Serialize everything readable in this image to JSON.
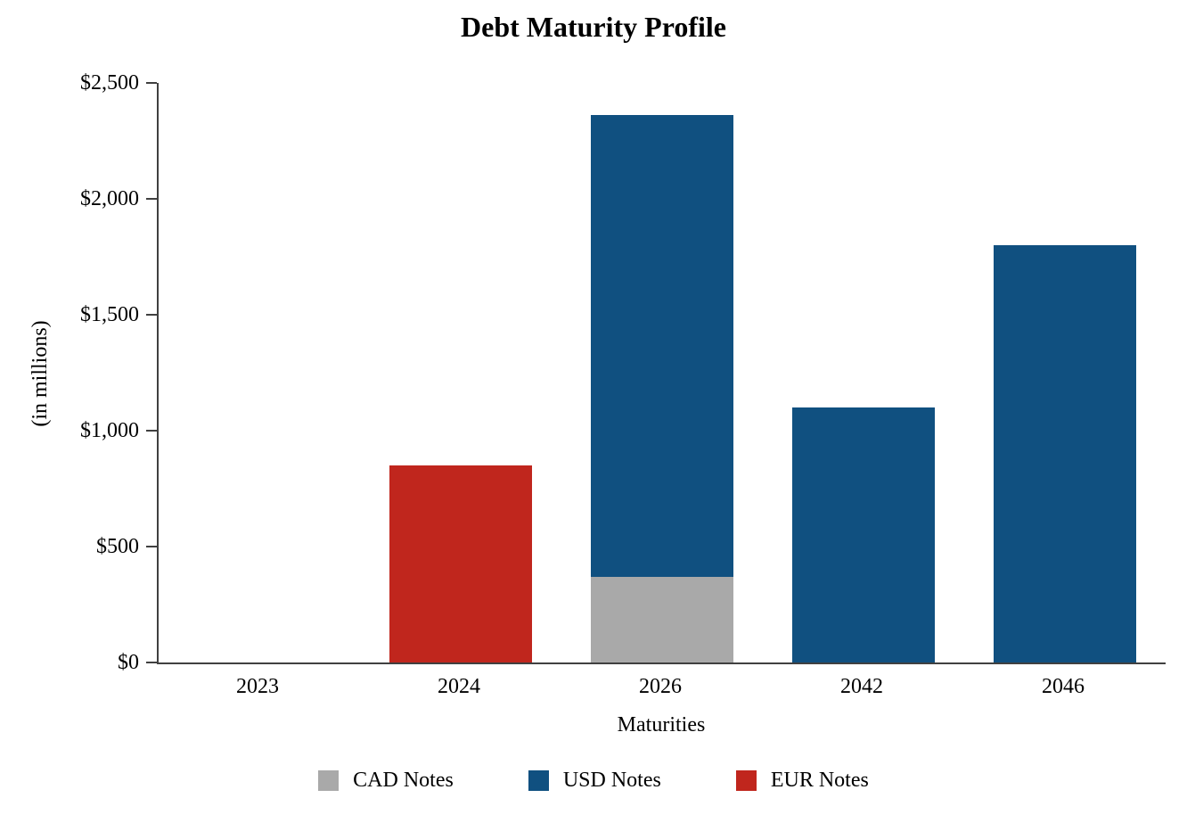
{
  "chart_data": {
    "type": "bar",
    "stacked": true,
    "title": "Debt Maturity Profile",
    "xlabel": "Maturities",
    "ylabel": "(in millions)",
    "categories": [
      "2023",
      "2024",
      "2026",
      "2042",
      "2046"
    ],
    "series": [
      {
        "name": "CAD Notes",
        "color": "#a9a9a9",
        "values": [
          0,
          0,
          370,
          0,
          0
        ]
      },
      {
        "name": "USD Notes",
        "color": "#105080",
        "values": [
          0,
          0,
          1990,
          1100,
          1800
        ]
      },
      {
        "name": "EUR Notes",
        "color": "#c0261d",
        "values": [
          0,
          850,
          0,
          0,
          0
        ]
      }
    ],
    "ylim": [
      0,
      2500
    ],
    "yticks": [
      {
        "value": 0,
        "label": "$0"
      },
      {
        "value": 500,
        "label": "$500"
      },
      {
        "value": 1000,
        "label": "$1,000"
      },
      {
        "value": 1500,
        "label": "$1,500"
      },
      {
        "value": 2000,
        "label": "$2,000"
      },
      {
        "value": 2500,
        "label": "$2,500"
      }
    ],
    "legend_position": "bottom",
    "grid": false
  }
}
